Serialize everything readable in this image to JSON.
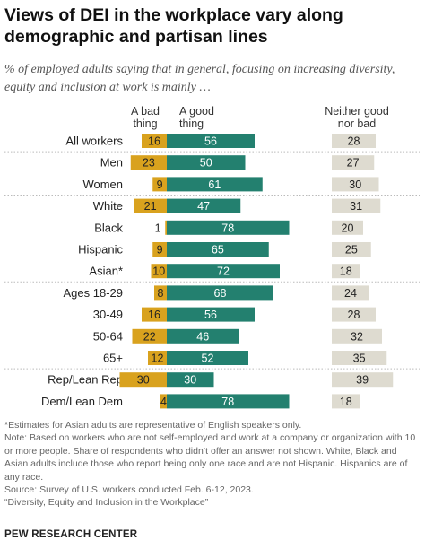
{
  "title": "Views of DEI in the workplace vary along demographic and partisan lines",
  "subtitle": "% of employed adults saying that in general, focusing on increasing diversity, equity and inclusion at work is mainly …",
  "chart_data": {
    "type": "bar",
    "layout": "diverging-stacked-horizontal",
    "column_headers": {
      "bad": "A bad thing",
      "good": "A good thing",
      "neither": "Neither good nor bad"
    },
    "categories": [
      "All workers",
      "Men",
      "Women",
      "White",
      "Black",
      "Hispanic",
      "Asian*",
      "Ages 18-29",
      "30-49",
      "50-64",
      "65+",
      "Rep/Lean Rep",
      "Dem/Lean Dem"
    ],
    "series": [
      {
        "name": "A bad thing",
        "values": [
          16,
          23,
          9,
          21,
          1,
          9,
          10,
          8,
          16,
          22,
          12,
          30,
          4
        ],
        "color": "#d9a21e"
      },
      {
        "name": "A good thing",
        "values": [
          56,
          50,
          61,
          47,
          78,
          65,
          72,
          68,
          56,
          46,
          52,
          30,
          78
        ],
        "color": "#23806f"
      },
      {
        "name": "Neither good nor bad",
        "values": [
          28,
          27,
          30,
          31,
          20,
          25,
          18,
          24,
          28,
          32,
          35,
          39,
          18
        ],
        "color": "#dedbd0"
      }
    ],
    "groups": [
      [
        0
      ],
      [
        1,
        2
      ],
      [
        3,
        4,
        5,
        6
      ],
      [
        7,
        8,
        9,
        10
      ],
      [
        11,
        12
      ]
    ],
    "grid": false,
    "legend": "column headers"
  },
  "footnotes": [
    "*Estimates for Asian adults are representative of English speakers only.",
    "Note: Based on workers who are not self-employed and work at a company or organization with 10 or more people. Share of respondents who didn’t offer an answer not shown. White, Black and Asian adults include those who report being only one race and are not Hispanic. Hispanics are of any race.",
    "Source: Survey of U.S. workers conducted Feb. 6-12, 2023.",
    "“Diversity, Equity and Inclusion in the Workplace”"
  ],
  "brand": "PEW RESEARCH CENTER"
}
